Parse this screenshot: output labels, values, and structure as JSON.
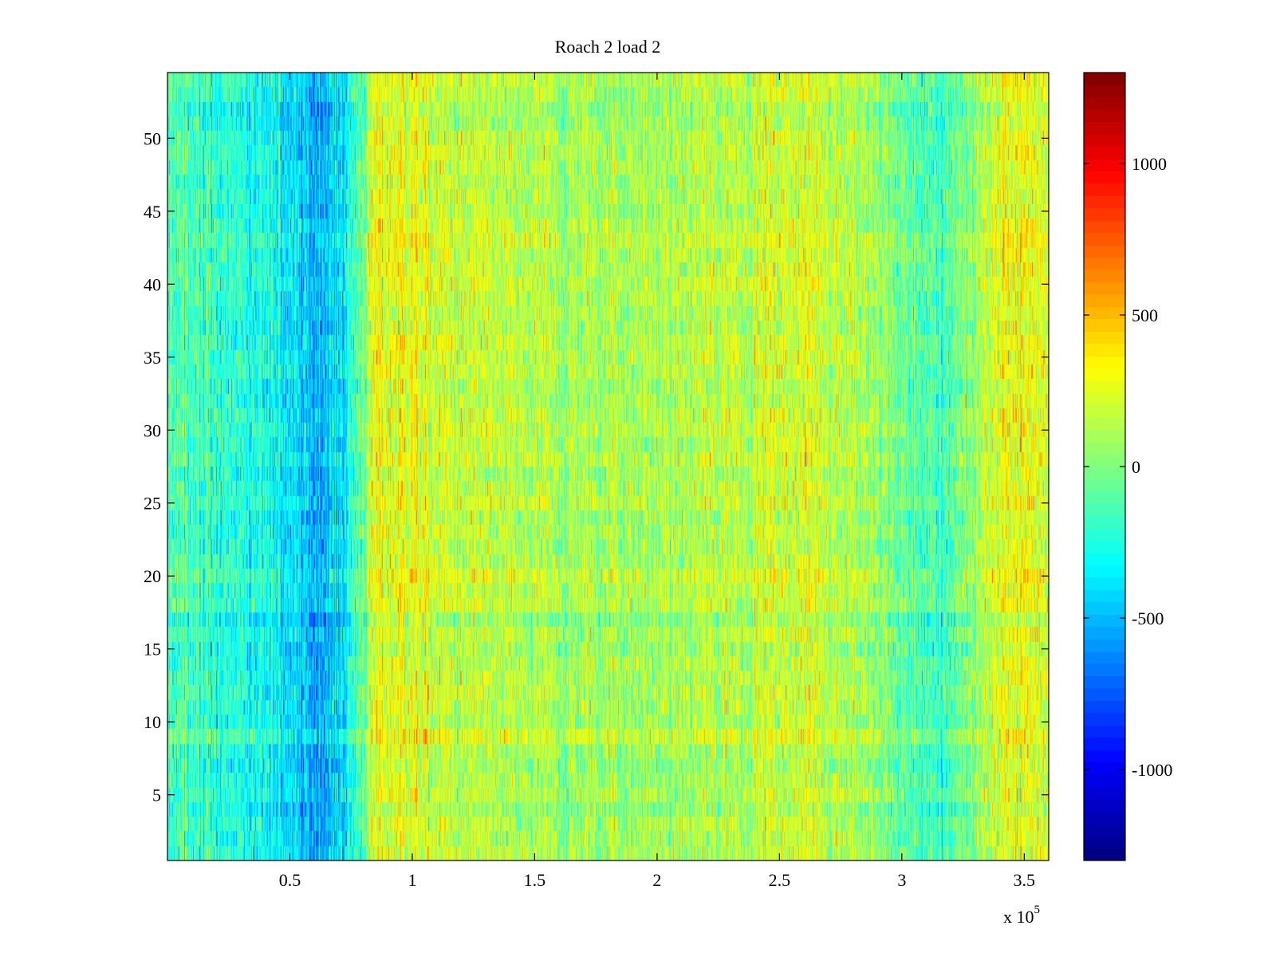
{
  "chart_data": {
    "type": "heatmap",
    "title": "Roach 2 load 2",
    "xlabel": "",
    "ylabel": "",
    "x_multiplier": {
      "prefix": "x 10",
      "exponent": "5"
    },
    "xlim": [
      0,
      3.6
    ],
    "ylim": [
      0.5,
      54.5
    ],
    "x_ticks": [
      {
        "value": 0.5,
        "label": "0.5"
      },
      {
        "value": 1,
        "label": "1"
      },
      {
        "value": 1.5,
        "label": "1.5"
      },
      {
        "value": 2,
        "label": "2"
      },
      {
        "value": 2.5,
        "label": "2.5"
      },
      {
        "value": 3,
        "label": "3"
      },
      {
        "value": 3.5,
        "label": "3.5"
      }
    ],
    "y_ticks": [
      {
        "value": 5,
        "label": "5"
      },
      {
        "value": 10,
        "label": "10"
      },
      {
        "value": 15,
        "label": "15"
      },
      {
        "value": 20,
        "label": "20"
      },
      {
        "value": 25,
        "label": "25"
      },
      {
        "value": 30,
        "label": "30"
      },
      {
        "value": 35,
        "label": "35"
      },
      {
        "value": 40,
        "label": "40"
      },
      {
        "value": 45,
        "label": "45"
      },
      {
        "value": 50,
        "label": "50"
      }
    ],
    "rows": 54,
    "columns": 1200,
    "colormap": "jet",
    "clim": [
      -1300,
      1300
    ],
    "colorbar_ticks": [
      {
        "value": 1000,
        "label": "1000"
      },
      {
        "value": 500,
        "label": "500"
      },
      {
        "value": 0,
        "label": "0"
      },
      {
        "value": -500,
        "label": "-500"
      },
      {
        "value": -1000,
        "label": "-1000"
      }
    ],
    "column_trend": [
      {
        "x": 0.0,
        "value": -120
      },
      {
        "x": 0.3,
        "value": -220
      },
      {
        "x": 0.5,
        "value": -380
      },
      {
        "x": 0.6,
        "value": -520
      },
      {
        "x": 0.7,
        "value": -420
      },
      {
        "x": 0.78,
        "value": -120
      },
      {
        "x": 0.85,
        "value": 260
      },
      {
        "x": 0.95,
        "value": 300
      },
      {
        "x": 1.2,
        "value": 160
      },
      {
        "x": 1.6,
        "value": 110
      },
      {
        "x": 2.0,
        "value": 90
      },
      {
        "x": 2.3,
        "value": 170
      },
      {
        "x": 2.6,
        "value": 230
      },
      {
        "x": 2.8,
        "value": 140
      },
      {
        "x": 3.0,
        "value": -40
      },
      {
        "x": 3.15,
        "value": -180
      },
      {
        "x": 3.3,
        "value": 80
      },
      {
        "x": 3.45,
        "value": 330
      },
      {
        "x": 3.6,
        "value": 220
      }
    ]
  }
}
